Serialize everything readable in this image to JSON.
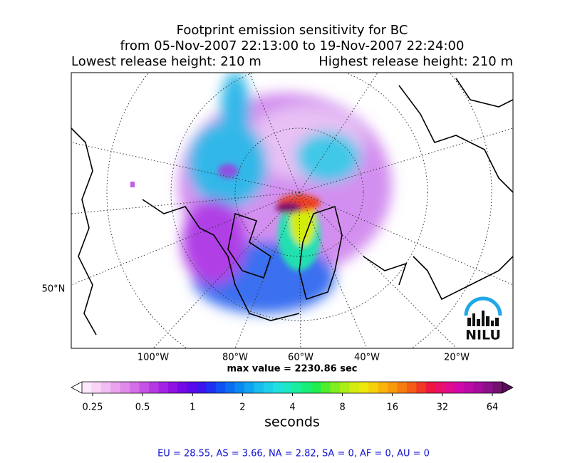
{
  "title": [
    "Footprint emission sensitivity for BC",
    "from 05-Nov-2007 22:13:00 to 19-Nov-2007 22:24:00"
  ],
  "lowest_release": "Lowest release height: 210 m",
  "highest_release": "Highest release height: 210 m",
  "map": {
    "lon_labels": [
      "100°W",
      "80°W",
      "60°W",
      "40°W",
      "20°W"
    ],
    "lat_labels": [
      "50°N"
    ],
    "logo": "NILU"
  },
  "max_value": "max value = 2230.86 sec",
  "colorbar": {
    "ticks": [
      "0.25",
      "0.5",
      "1",
      "2",
      "4",
      "8",
      "16",
      "32",
      "64"
    ],
    "label": "seconds",
    "colors": [
      "#fde8fb",
      "#f9d4f7",
      "#f2bdf2",
      "#eaa4ee",
      "#e08aeb",
      "#d46fe8",
      "#c653e6",
      "#b63ae4",
      "#a524e3",
      "#8f12e2",
      "#7508e6",
      "#5a0aea",
      "#3c14ee",
      "#2030f2",
      "#1050f2",
      "#0a6ef0",
      "#0a8af0",
      "#10a4f0",
      "#18bcee",
      "#1cd0ea",
      "#20e0e0",
      "#1ee8c4",
      "#1aeca0",
      "#16ee78",
      "#20ee50",
      "#50ee2c",
      "#80ee20",
      "#acee18",
      "#d4ec10",
      "#eee80c",
      "#f6d00a",
      "#f8b40a",
      "#f89a0c",
      "#f67c10",
      "#f45c18",
      "#f03824",
      "#ec1640",
      "#e8106a",
      "#e00a90",
      "#d008aa",
      "#bc0aa8",
      "#a40c9c",
      "#8c108a",
      "#741070"
    ],
    "under": "#ffffff",
    "over": "#5a0a5a"
  },
  "footer": "EU = 28.55,  AS = 3.66,  NA = 2.82,  SA = 0,  AF = 0,  AU = 0"
}
